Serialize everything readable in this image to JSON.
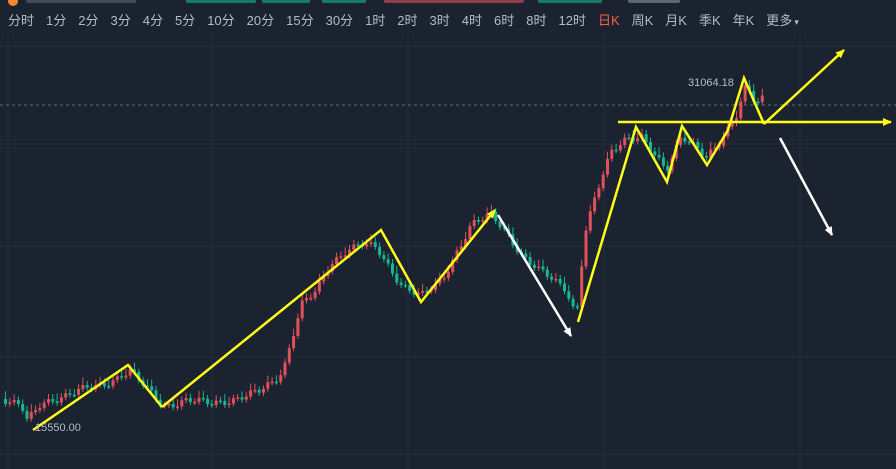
{
  "colors": {
    "background": "#1b2230",
    "up": "#e3505a",
    "down": "#17b890",
    "annotation_primary": "#ffff1a",
    "annotation_secondary": "#ffffff",
    "active_tab": "#ff5a4a"
  },
  "tabs": [
    {
      "label": "分时"
    },
    {
      "label": "1分"
    },
    {
      "label": "2分"
    },
    {
      "label": "3分"
    },
    {
      "label": "4分"
    },
    {
      "label": "5分"
    },
    {
      "label": "10分"
    },
    {
      "label": "20分"
    },
    {
      "label": "15分"
    },
    {
      "label": "30分"
    },
    {
      "label": "1时"
    },
    {
      "label": "2时"
    },
    {
      "label": "3时"
    },
    {
      "label": "4时"
    },
    {
      "label": "6时"
    },
    {
      "label": "8时"
    },
    {
      "label": "12时"
    },
    {
      "label": "日K",
      "active": true
    },
    {
      "label": "周K"
    },
    {
      "label": "月K"
    },
    {
      "label": "季K"
    },
    {
      "label": "年K"
    },
    {
      "label": "更多",
      "icon": "caret-down-icon"
    }
  ],
  "chart_data": {
    "type": "candlestick",
    "interval": "日K",
    "annotations_text": {
      "high_label": "31064.18",
      "low_label": "15550.00"
    },
    "high": 31064.18,
    "low": 15550.0,
    "current_price_line": "dashed",
    "grid": true,
    "drawings": [
      {
        "kind": "zigzag-arrow",
        "color": "yellow",
        "description": "uptrend zigzag to first peak"
      },
      {
        "kind": "zigzag-arrow",
        "color": "yellow",
        "description": "long rally"
      },
      {
        "kind": "horizontal-ray",
        "color": "yellow",
        "description": "resistance line"
      },
      {
        "kind": "arrow",
        "color": "white",
        "description": "pullback"
      },
      {
        "kind": "arrow",
        "color": "white",
        "description": "possible drop"
      }
    ]
  }
}
